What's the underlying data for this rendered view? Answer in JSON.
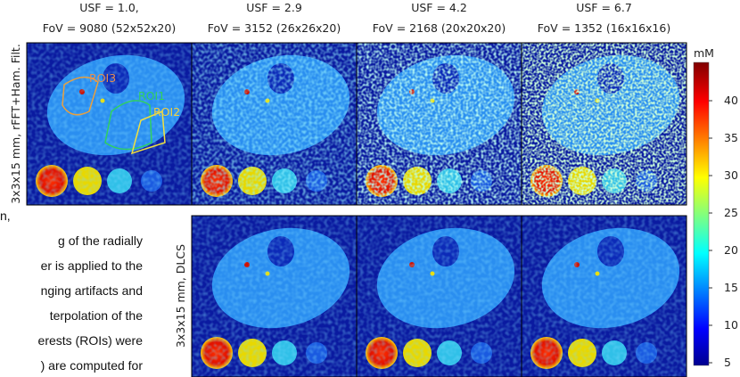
{
  "columns": [
    {
      "usf": "USF = 1.0,",
      "fov": "FoV = 9080 (52x52x20)"
    },
    {
      "usf": "USF = 2.9",
      "fov": "FoV = 3152 (26x26x20)"
    },
    {
      "usf": "USF = 4.2",
      "fov": "FoV = 2168 (20x20x20)"
    },
    {
      "usf": "USF = 6.7",
      "fov": "FoV = 1352 (16x16x16)"
    }
  ],
  "rows": [
    {
      "label": "3x3x15 mm, rFFT+Ham. Filt."
    },
    {
      "label": "3x3x15 mm, DLCS"
    }
  ],
  "rois": [
    "ROI3",
    "ROI1",
    "ROI2"
  ],
  "colorbar": {
    "unit": "mM",
    "ticks": [
      "40",
      "35",
      "30",
      "25",
      "20",
      "15",
      "10",
      "5"
    ]
  },
  "side_text": [
    "n,",
    "g of the radially",
    "er is applied to the",
    "nging artifacts and",
    "terpolation of the",
    "erests (ROIs) were",
    ") are computed for"
  ]
}
